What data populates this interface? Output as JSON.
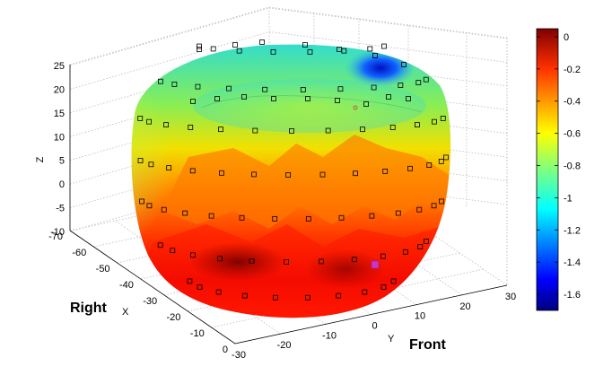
{
  "chart_data": {
    "type": "surface3d",
    "xlabel": "X",
    "ylabel": "Y",
    "zlabel": "Z",
    "x_ticks": [
      "-70",
      "-60",
      "-50",
      "-40",
      "-30",
      "-20",
      "-10",
      "0"
    ],
    "y_ticks": [
      "-30",
      "-20",
      "-10",
      "0",
      "10",
      "20",
      "30"
    ],
    "z_ticks": [
      "25",
      "20",
      "15",
      "10",
      "5",
      "0",
      "-5",
      "-10"
    ],
    "xlim": [
      -70,
      0
    ],
    "ylim": [
      -30,
      30
    ],
    "zlim": [
      -10,
      25
    ],
    "annotations": {
      "right": "Right",
      "front": "Front"
    },
    "colorbar": {
      "colormap": "jet",
      "range": [
        -1.7,
        0.05
      ],
      "ticks": [
        "0",
        "-0.2",
        "-0.4",
        "-0.6",
        "-0.8",
        "-1",
        "-1.2",
        "-1.4",
        "-1.6"
      ],
      "colors": [
        "#00007f",
        "#0000ff",
        "#007fff",
        "#00ffff",
        "#7fff7f",
        "#ffff00",
        "#ff7f00",
        "#ff0000",
        "#7f0000"
      ]
    },
    "grid": true,
    "marker": "open-square",
    "highlight_marker_color": "#cc33cc"
  }
}
